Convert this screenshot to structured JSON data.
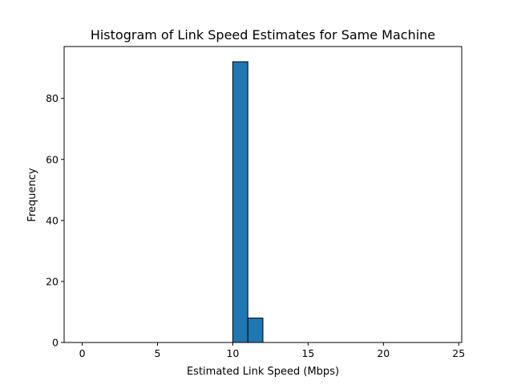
{
  "chart_data": {
    "type": "bar",
    "title": "Histogram of Link Speed Estimates for Same Machine",
    "xlabel": "Estimated Link Speed (Mbps)",
    "ylabel": "Frequency",
    "xlim": [
      -1.2,
      25.2
    ],
    "ylim": [
      0,
      97
    ],
    "x_ticks": [
      0,
      5,
      10,
      15,
      20,
      25
    ],
    "y_ticks": [
      0,
      20,
      40,
      60,
      80
    ],
    "bin_edges": [
      0,
      1,
      2,
      3,
      4,
      5,
      6,
      7,
      8,
      9,
      10,
      11,
      12,
      13,
      14,
      15,
      16,
      17,
      18,
      19,
      20,
      21,
      22,
      23,
      24
    ],
    "values": [
      0,
      0,
      0,
      0,
      0,
      0,
      0,
      0,
      0,
      0,
      92,
      8,
      0,
      0,
      0,
      0,
      0,
      0,
      0,
      0,
      0,
      0,
      0,
      0
    ],
    "bar_color": "#1f77b4",
    "edge_color": "#000000",
    "grid": false,
    "legend": "none"
  }
}
